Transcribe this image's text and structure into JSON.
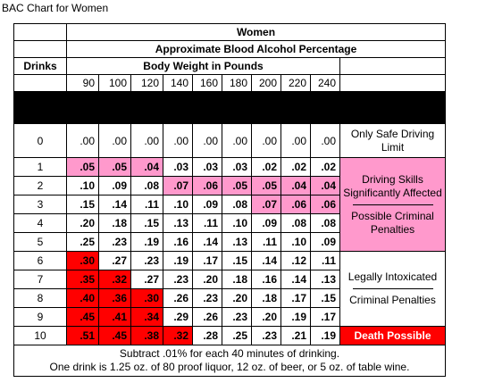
{
  "caption": "BAC Chart for Women",
  "header": {
    "group": "Women",
    "measure": "Approximate Blood Alcohol Percentage",
    "drinks_label": "Drinks",
    "weight_label": "Body Weight in Pounds"
  },
  "weights": [
    "90",
    "100",
    "120",
    "140",
    "160",
    "180",
    "200",
    "220",
    "240"
  ],
  "rows": [
    {
      "drinks": "0",
      "values": [
        ".00",
        ".00",
        ".00",
        ".00",
        ".00",
        ".00",
        ".00",
        ".00",
        ".00"
      ]
    },
    {
      "drinks": "1",
      "values": [
        ".05",
        ".05",
        ".04",
        ".03",
        ".03",
        ".03",
        ".02",
        ".02",
        ".02"
      ]
    },
    {
      "drinks": "2",
      "values": [
        ".10",
        ".09",
        ".08",
        ".07",
        ".06",
        ".05",
        ".05",
        ".04",
        ".04"
      ]
    },
    {
      "drinks": "3",
      "values": [
        ".15",
        ".14",
        ".11",
        ".10",
        ".09",
        ".08",
        ".07",
        ".06",
        ".06"
      ]
    },
    {
      "drinks": "4",
      "values": [
        ".20",
        ".18",
        ".15",
        ".13",
        ".11",
        ".10",
        ".09",
        ".08",
        ".08"
      ]
    },
    {
      "drinks": "5",
      "values": [
        ".25",
        ".23",
        ".19",
        ".16",
        ".14",
        ".13",
        ".11",
        ".10",
        ".09"
      ]
    },
    {
      "drinks": "6",
      "values": [
        ".30",
        ".27",
        ".23",
        ".19",
        ".17",
        ".15",
        ".14",
        ".12",
        ".11"
      ]
    },
    {
      "drinks": "7",
      "values": [
        ".35",
        ".32",
        ".27",
        ".23",
        ".20",
        ".18",
        ".16",
        ".14",
        ".13"
      ]
    },
    {
      "drinks": "8",
      "values": [
        ".40",
        ".36",
        ".30",
        ".26",
        ".23",
        ".20",
        ".18",
        ".17",
        ".15"
      ]
    },
    {
      "drinks": "9",
      "values": [
        ".45",
        ".41",
        ".34",
        ".29",
        ".26",
        ".23",
        ".20",
        ".19",
        ".17"
      ]
    },
    {
      "drinks": "10",
      "values": [
        ".51",
        ".45",
        ".38",
        ".32",
        ".28",
        ".25",
        ".23",
        ".21",
        ".19"
      ]
    }
  ],
  "highlights": {
    "pink": [
      [
        1,
        0
      ],
      [
        1,
        1
      ],
      [
        1,
        2
      ],
      [
        2,
        3
      ],
      [
        2,
        4
      ],
      [
        2,
        5
      ],
      [
        2,
        6
      ],
      [
        2,
        7
      ],
      [
        2,
        8
      ],
      [
        3,
        6
      ],
      [
        3,
        7
      ],
      [
        3,
        8
      ]
    ],
    "red": [
      [
        6,
        0
      ],
      [
        7,
        0
      ],
      [
        7,
        1
      ],
      [
        8,
        0
      ],
      [
        8,
        1
      ],
      [
        8,
        2
      ],
      [
        9,
        0
      ],
      [
        9,
        1
      ],
      [
        9,
        2
      ],
      [
        10,
        0
      ],
      [
        10,
        1
      ],
      [
        10,
        2
      ],
      [
        10,
        3
      ]
    ]
  },
  "colors": {
    "pink": "#ff99cc",
    "red": "#ff0000"
  },
  "zones": {
    "safe": "Only Safe Driving Limit",
    "impaired": "Driving Skills Significantly Affected",
    "possible_penalties": "Possible Criminal Penalties",
    "intoxicated": "Legally Intoxicated",
    "penalties": "Criminal Penalties",
    "death": "Death Possible"
  },
  "footer": {
    "line1": "Subtract .01% for each 40 minutes of drinking.",
    "line2": "One drink is 1.25 oz. of 80 proof liquor, 12 oz. of beer, or 5 oz. of table wine."
  }
}
